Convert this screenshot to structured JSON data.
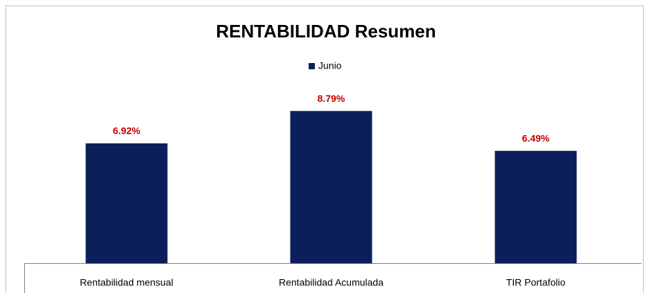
{
  "chart_data": {
    "type": "bar",
    "title": "RENTABILIDAD Resumen",
    "categories": [
      "Rentabilidad mensual",
      "Rentabilidad Acumulada",
      "TIR Portafolio"
    ],
    "series": [
      {
        "name": "Junio",
        "color": "#0c1f5b",
        "values": [
          6.92,
          8.79,
          6.49
        ],
        "value_labels": [
          "6.92%",
          "8.79%",
          "6.49%"
        ]
      }
    ],
    "value_label_color": "#c00000",
    "ylim": [
      0,
      10
    ],
    "legend": "top"
  }
}
